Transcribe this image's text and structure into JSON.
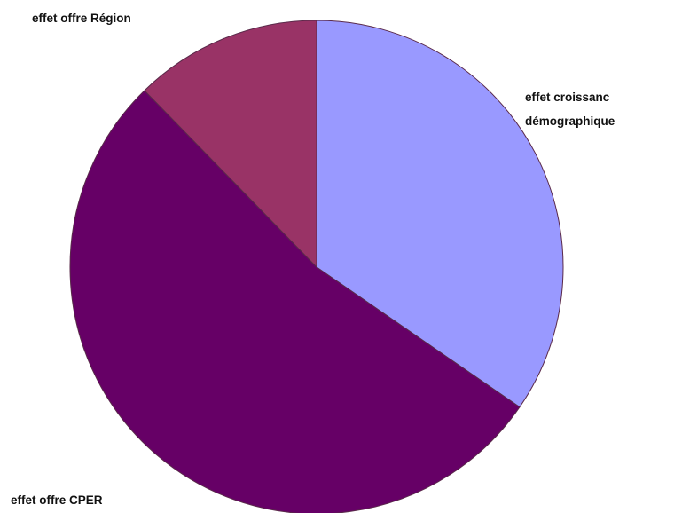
{
  "chart_data": {
    "type": "pie",
    "slices": [
      {
        "label_lines": [
          "effet croissanc",
          "démographique"
        ],
        "value": 34.6,
        "color": "#9999ff"
      },
      {
        "label_lines": [
          "effet offre CPER"
        ],
        "value": 53.1,
        "color": "#660066"
      },
      {
        "label_lines": [
          "effet offre Région"
        ],
        "value": 12.3,
        "color": "#993366"
      }
    ],
    "start_angle_deg": 0,
    "direction": "clockwise",
    "legend": "none"
  }
}
